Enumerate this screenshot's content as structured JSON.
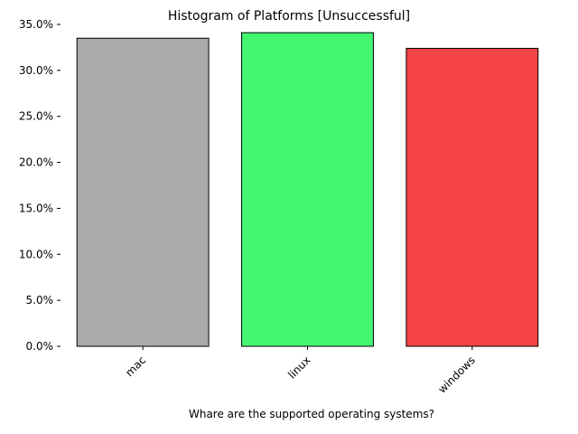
{
  "chart_data": {
    "type": "bar",
    "title": "Histogram of Platforms [Unsuccessful]",
    "xlabel": "Whare are the supported operating systems?",
    "ylabel": "",
    "categories": [
      "mac",
      "linux",
      "windows"
    ],
    "values": [
      33.5,
      34.1,
      32.4
    ],
    "value_unit": "percent",
    "ylim": [
      0,
      35
    ],
    "yticks": [
      0,
      5,
      10,
      15,
      20,
      25,
      30,
      35
    ],
    "ytick_labels": [
      "0.0%",
      "5.0%",
      "10.0%",
      "15.0%",
      "20.0%",
      "25.0%",
      "30.0%",
      "35.0%"
    ],
    "bar_colors": [
      "#aaaaaa",
      "#44f572",
      "#f44344"
    ],
    "bar_edge_color": "#000000",
    "grid": false,
    "legend": "none"
  }
}
